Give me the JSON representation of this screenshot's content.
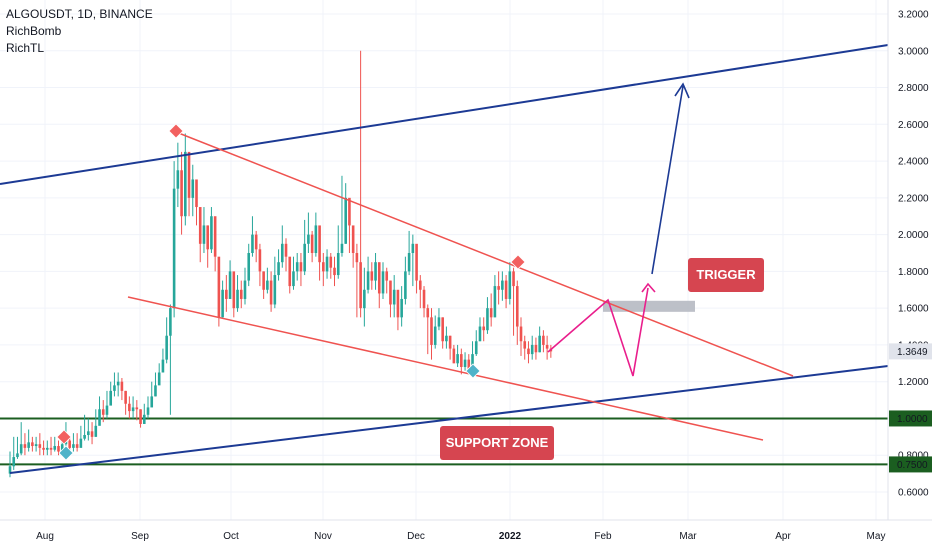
{
  "legend": {
    "symbol": "ALGOUSDT, 1D, BINANCE",
    "indicators": [
      "RichBomb",
      "RichTL"
    ]
  },
  "annotations": {
    "trigger": "TRIGGER",
    "support_zone": "SUPPORT ZONE"
  },
  "colors": {
    "bull": "#26a69a",
    "bear": "#ef5350",
    "channel": "#1c3a94",
    "wedge": "#ef5350",
    "support": "#1b5e20",
    "projection": "#e91e8c",
    "badge": "#d64550"
  },
  "chart_data": {
    "type": "candlestick",
    "symbol": "ALGOUSDT",
    "timeframe": "1D",
    "exchange": "BINANCE",
    "x_ticks": [
      "Aug",
      "Sep",
      "Oct",
      "Nov",
      "Dec",
      "2022",
      "Feb",
      "Mar",
      "Apr",
      "May"
    ],
    "y_ticks": [
      "0.6000",
      "0.8000",
      "1.0000",
      "1.2000",
      "1.4000",
      "1.6000",
      "1.8000",
      "2.0000",
      "2.2000",
      "2.4000",
      "2.6000",
      "2.8000",
      "3.0000",
      "3.2000"
    ],
    "ylim": [
      0.5,
      3.25
    ],
    "last_price": "1.3649",
    "support_levels": [
      "1.0000",
      "0.7500"
    ],
    "trigger_zone": [
      1.58,
      1.64
    ],
    "closes": [
      0.74,
      0.79,
      0.81,
      0.86,
      0.84,
      0.87,
      0.85,
      0.86,
      0.84,
      0.83,
      0.84,
      0.83,
      0.85,
      0.82,
      0.86,
      0.88,
      0.84,
      0.86,
      0.84,
      0.89,
      0.91,
      0.93,
      0.9,
      0.96,
      1.05,
      1.02,
      1.07,
      1.15,
      1.18,
      1.2,
      1.15,
      1.08,
      1.04,
      1.06,
      1.05,
      0.97,
      1.02,
      1.06,
      1.12,
      1.18,
      1.25,
      1.32,
      1.45,
      1.6,
      2.25,
      2.35,
      2.1,
      2.45,
      2.2,
      2.3,
      2.15,
      1.95,
      2.05,
      1.92,
      2.1,
      1.88,
      1.55,
      1.7,
      1.65,
      1.8,
      1.6,
      1.7,
      1.65,
      1.75,
      1.9,
      2.0,
      1.92,
      1.8,
      1.7,
      1.75,
      1.62,
      1.78,
      1.85,
      1.95,
      1.88,
      1.72,
      1.8,
      1.85,
      1.8,
      1.95,
      2.0,
      1.9,
      2.05,
      1.85,
      1.8,
      1.88,
      1.82,
      1.78,
      1.9,
      1.95,
      2.2,
      2.05,
      1.9,
      1.85,
      1.6,
      1.7,
      1.8,
      1.75,
      1.85,
      1.68,
      1.8,
      1.75,
      1.62,
      1.7,
      1.55,
      1.65,
      1.8,
      1.9,
      1.95,
      1.75,
      1.7,
      1.6,
      1.55,
      1.4,
      1.5,
      1.55,
      1.42,
      1.45,
      1.38,
      1.3,
      1.35,
      1.28,
      1.32,
      1.27,
      1.35,
      1.42,
      1.5,
      1.48,
      1.6,
      1.55,
      1.72,
      1.7,
      1.75,
      1.65,
      1.8,
      1.72,
      1.5,
      1.42,
      1.38,
      1.35,
      1.4,
      1.36,
      1.45,
      1.4,
      1.38,
      1.3649
    ],
    "highs": [
      0.82,
      0.9,
      0.9,
      0.98,
      0.92,
      0.94,
      0.9,
      0.9,
      0.92,
      0.88,
      0.88,
      0.9,
      0.9,
      0.88,
      0.92,
      0.98,
      0.9,
      0.92,
      0.92,
      0.96,
      1.02,
      1.0,
      0.98,
      1.05,
      1.12,
      1.1,
      1.15,
      1.2,
      1.25,
      1.25,
      1.22,
      1.15,
      1.12,
      1.12,
      1.1,
      1.05,
      1.08,
      1.12,
      1.2,
      1.25,
      1.3,
      1.38,
      1.55,
      1.62,
      2.4,
      2.5,
      2.45,
      2.55,
      2.4,
      2.38,
      2.3,
      2.1,
      2.15,
      2.05,
      2.15,
      2.05,
      1.75,
      1.75,
      1.78,
      1.86,
      1.72,
      1.78,
      1.75,
      1.82,
      1.95,
      2.1,
      2.02,
      1.95,
      1.8,
      1.82,
      1.8,
      1.88,
      1.92,
      2.05,
      1.98,
      1.85,
      1.88,
      1.9,
      1.9,
      2.08,
      2.12,
      2.02,
      2.12,
      2.0,
      1.9,
      1.92,
      1.9,
      1.88,
      2.05,
      2.32,
      2.28,
      2.15,
      2.02,
      1.95,
      3.0,
      1.82,
      1.88,
      1.85,
      1.9,
      1.82,
      1.85,
      1.82,
      1.75,
      1.78,
      1.68,
      1.72,
      1.88,
      2.02,
      2.0,
      1.92,
      1.78,
      1.72,
      1.62,
      1.6,
      1.56,
      1.6,
      1.55,
      1.5,
      1.45,
      1.4,
      1.4,
      1.38,
      1.36,
      1.35,
      1.42,
      1.48,
      1.55,
      1.55,
      1.66,
      1.68,
      1.78,
      1.8,
      1.8,
      1.78,
      1.85,
      1.82,
      1.75,
      1.55,
      1.45,
      1.42,
      1.45,
      1.44,
      1.5,
      1.48,
      1.45,
      1.4
    ],
    "lows": [
      0.68,
      0.72,
      0.78,
      0.8,
      0.8,
      0.82,
      0.82,
      0.82,
      0.8,
      0.8,
      0.8,
      0.8,
      0.82,
      0.8,
      0.82,
      0.82,
      0.82,
      0.82,
      0.82,
      0.85,
      0.88,
      0.88,
      0.86,
      0.9,
      0.98,
      0.98,
      1.0,
      1.08,
      1.12,
      1.12,
      1.1,
      1.02,
      1.0,
      1.0,
      0.99,
      0.95,
      0.98,
      1.0,
      1.08,
      1.12,
      1.2,
      1.25,
      1.3,
      1.02,
      1.55,
      2.15,
      2.0,
      2.05,
      2.1,
      2.1,
      2.05,
      1.85,
      1.9,
      1.82,
      1.9,
      1.8,
      1.5,
      1.55,
      1.58,
      1.65,
      1.55,
      1.58,
      1.6,
      1.62,
      1.72,
      1.88,
      1.85,
      1.72,
      1.65,
      1.68,
      1.58,
      1.6,
      1.75,
      1.82,
      1.8,
      1.68,
      1.7,
      1.75,
      1.72,
      1.78,
      1.9,
      1.85,
      1.88,
      1.75,
      1.72,
      1.76,
      1.76,
      1.72,
      1.76,
      1.88,
      1.95,
      1.9,
      1.82,
      1.55,
      1.55,
      1.5,
      1.68,
      1.7,
      1.7,
      1.6,
      1.65,
      1.68,
      1.55,
      1.55,
      1.48,
      1.5,
      1.62,
      1.78,
      1.72,
      1.68,
      1.6,
      1.55,
      1.35,
      1.32,
      1.38,
      1.48,
      1.38,
      1.38,
      1.32,
      1.3,
      1.28,
      1.24,
      1.26,
      1.25,
      1.26,
      1.34,
      1.42,
      1.42,
      1.46,
      1.5,
      1.55,
      1.62,
      1.64,
      1.6,
      1.62,
      1.45,
      1.4,
      1.34,
      1.32,
      1.3,
      1.32,
      1.32,
      1.36,
      1.36,
      1.32,
      1.33
    ]
  }
}
